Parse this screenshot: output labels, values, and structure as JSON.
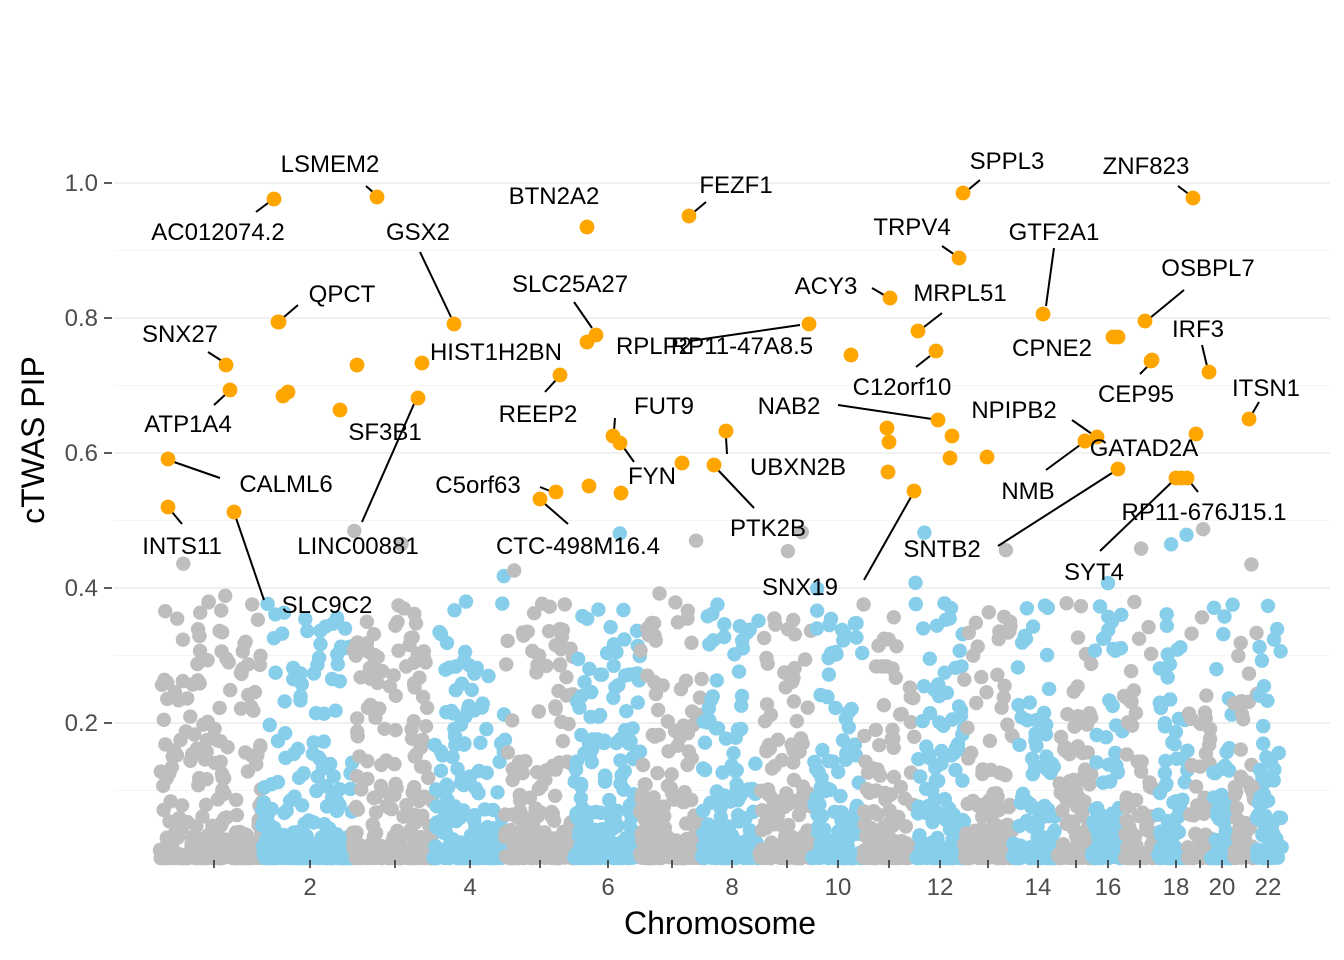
{
  "chart_data": {
    "type": "scatter",
    "xlabel": "Chromosome",
    "ylabel": "cTWAS PIP",
    "ylim": [
      0,
      1.05
    ],
    "y_ticks": [
      0.2,
      0.4,
      0.6,
      0.8,
      1.0
    ],
    "y_tick_labels": [
      "0.2",
      "0.4",
      "0.6",
      "0.8",
      "1.0"
    ],
    "x_tick_labels": [
      "2",
      "4",
      "6",
      "8",
      "10",
      "12",
      "14",
      "16",
      "18",
      "20",
      "22"
    ],
    "grid": true,
    "colors": {
      "odd_chromosome": "#bebebe",
      "even_chromosome": "#87ceeb",
      "significant": "#ffa500"
    },
    "chromosomes": [
      {
        "chr": 1,
        "start": 0,
        "length": 249
      },
      {
        "chr": 2,
        "start": 249,
        "length": 243
      },
      {
        "chr": 3,
        "start": 492,
        "length": 198
      },
      {
        "chr": 4,
        "start": 690,
        "length": 191
      },
      {
        "chr": 5,
        "start": 881,
        "length": 182
      },
      {
        "chr": 6,
        "start": 1063,
        "length": 171
      },
      {
        "chr": 7,
        "start": 1234,
        "length": 159
      },
      {
        "chr": 8,
        "start": 1393,
        "length": 146
      },
      {
        "chr": 9,
        "start": 1539,
        "length": 141
      },
      {
        "chr": 10,
        "start": 1680,
        "length": 136
      },
      {
        "chr": 11,
        "start": 1816,
        "length": 135
      },
      {
        "chr": 12,
        "start": 1951,
        "length": 134
      },
      {
        "chr": 13,
        "start": 2085,
        "length": 115
      },
      {
        "chr": 14,
        "start": 2200,
        "length": 107
      },
      {
        "chr": 15,
        "start": 2307,
        "length": 102
      },
      {
        "chr": 16,
        "start": 2409,
        "length": 90
      },
      {
        "chr": 17,
        "start": 2499,
        "length": 83
      },
      {
        "chr": 18,
        "start": 2582,
        "length": 80
      },
      {
        "chr": 19,
        "start": 2662,
        "length": 59
      },
      {
        "chr": 20,
        "start": 2721,
        "length": 64
      },
      {
        "chr": 21,
        "start": 2785,
        "length": 47
      },
      {
        "chr": 22,
        "start": 2832,
        "length": 51
      }
    ],
    "highlighted_genes": [
      {
        "gene": "AC012074.2",
        "chr": 1,
        "position": 3170,
        "pip": 0.976
      },
      {
        "gene": "LSMEM2",
        "chr": 3,
        "position": 3780,
        "pip": 0.978
      },
      {
        "gene": "BTN2A2",
        "chr": 6,
        "position": 5870,
        "pip": 0.934
      },
      {
        "gene": "FEZF1",
        "chr": 7,
        "position": 6890,
        "pip": 0.952
      },
      {
        "gene": "SPPL3",
        "chr": 12,
        "position": 9630,
        "pip": 0.985
      },
      {
        "gene": "ZNF823",
        "chr": 19,
        "position": 11930,
        "pip": 0.977
      },
      {
        "gene": "TRPV4",
        "chr": 12,
        "position": 9580,
        "pip": 0.887
      },
      {
        "gene": "GTF2A1",
        "chr": 14,
        "position": 10420,
        "pip": 0.806
      },
      {
        "gene": "GSX2",
        "chr": 4,
        "position": 4540,
        "pip": 0.791
      },
      {
        "gene": "QPCT",
        "chr": 2,
        "position": 2790,
        "pip": 0.793
      },
      {
        "gene": "SLC25A27",
        "chr": 6,
        "position": 5940,
        "pip": 0.772
      },
      {
        "gene": "RP11-47A8.5",
        "chr": 9,
        "position": 8090,
        "pip": 0.79
      },
      {
        "gene": "ACY3",
        "chr": 11,
        "position": 8900,
        "pip": 0.828
      },
      {
        "gene": "MRPL51",
        "chr": 12,
        "position": 9180,
        "pip": 0.78
      },
      {
        "gene": "OSBPL7",
        "chr": 17,
        "position": 11440,
        "pip": 0.795
      },
      {
        "gene": "CPNE2",
        "chr": 16,
        "position": 11130,
        "pip": 0.771
      },
      {
        "gene": "IRF3",
        "chr": 19,
        "position": 12080,
        "pip": 0.718
      },
      {
        "gene": "SNX27",
        "chr": 1,
        "position": 2260,
        "pip": 0.729
      },
      {
        "gene": "HIST1H2BN",
        "chr": 6,
        "position": 5870,
        "pip": 0.764
      },
      {
        "gene": "RPLP2",
        "chr": 11,
        "position": 8510,
        "pip": 0.744
      },
      {
        "gene": "C12orf10",
        "chr": 12,
        "position": 9360,
        "pip": 0.75
      },
      {
        "gene": "CEP95",
        "chr": 17,
        "position": 11510,
        "pip": 0.734
      },
      {
        "gene": "ITSN1",
        "chr": 21,
        "position": 12490,
        "pip": 0.648
      },
      {
        "gene": "REEP2",
        "chr": 5,
        "position": 5600,
        "pip": 0.714
      },
      {
        "gene": "ATP1A4",
        "chr": 1,
        "position": 2300,
        "pip": 0.693
      },
      {
        "gene": "SF3B1",
        "chr": 2,
        "position": 4180,
        "pip": 0.681
      },
      {
        "gene": "FUT9",
        "chr": 6,
        "position": 6140,
        "pip": 0.622
      },
      {
        "gene": "NAB2",
        "chr": 12,
        "position": 9390,
        "pip": 0.645
      },
      {
        "gene": "NPIPB2",
        "chr": 16,
        "position": 10980,
        "pip": 0.622
      },
      {
        "gene": "GATAD2A",
        "chr": 19,
        "position": 11160,
        "pip": 0.576
      },
      {
        "gene": "CALML6",
        "chr": 1,
        "position": 1680,
        "pip": 0.589
      },
      {
        "gene": "FYN",
        "chr": 6,
        "position": 6200,
        "pip": 0.611
      },
      {
        "gene": "UBXN2B",
        "chr": 8,
        "position": 7260,
        "pip": 0.632
      },
      {
        "gene": "PTK2B",
        "chr": 8,
        "position": 7140,
        "pip": 0.58
      },
      {
        "gene": "NMB",
        "chr": 15,
        "position": 10860,
        "pip": 0.619
      },
      {
        "gene": "C5orf63",
        "chr": 5,
        "position": 5540,
        "pip": 0.541
      },
      {
        "gene": "CTC-498M16.4",
        "chr": 5,
        "position": 5400,
        "pip": 0.531
      },
      {
        "gene": "RP11-676J15.1",
        "chr": 18,
        "position": 11850,
        "pip": 0.563
      },
      {
        "gene": "SYT4",
        "chr": 18,
        "position": 11750,
        "pip": 0.563
      },
      {
        "gene": "INTS11",
        "chr": 1,
        "position": 1680,
        "pip": 0.519
      },
      {
        "gene": "SLC9C2",
        "chr": 1,
        "position": 2350,
        "pip": 0.513
      },
      {
        "gene": "LINC00881",
        "chr": 3,
        "position": 4180,
        "pip": 0.681
      },
      {
        "gene": "SNX19",
        "chr": 11,
        "position": 9140,
        "pip": 0.544
      },
      {
        "gene": "SNTB2",
        "chr": 16,
        "position": 11180,
        "pip": 0.576
      }
    ],
    "unlabeled_highlights": [
      0.784,
      0.683,
      0.69,
      0.728,
      0.664,
      0.638,
      0.616,
      0.571,
      0.586,
      0.593,
      0.623,
      0.598,
      0.594,
      0.629,
      0.553,
      0.539,
      0.564,
      0.587
    ]
  }
}
